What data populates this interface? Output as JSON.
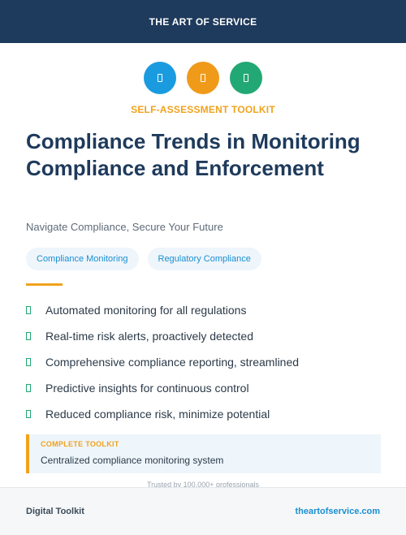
{
  "header": {
    "brand": "THE ART OF SERVICE"
  },
  "icons": [
    {
      "name": "document-icon",
      "color": "#1a9be0"
    },
    {
      "name": "document-icon",
      "color": "#f09a1a"
    },
    {
      "name": "document-icon",
      "color": "#22a874"
    }
  ],
  "kicker": "SELF-ASSESSMENT TOOLKIT",
  "title": "Compliance Trends in Monitoring Compliance and Enforcement",
  "subtitle": "Navigate Compliance, Secure Your Future",
  "tags": [
    "Compliance Monitoring",
    "Regulatory Compliance"
  ],
  "features": [
    "Automated monitoring for all regulations",
    "Real-time risk alerts, proactively detected",
    "Comprehensive compliance reporting, streamlined",
    "Predictive insights for continuous control",
    "Reduced compliance risk, minimize potential"
  ],
  "callout": {
    "kicker": "COMPLETE TOOLKIT",
    "text": "Centralized compliance monitoring system"
  },
  "trusted": "Trusted by 100,000+ professionals",
  "footer": {
    "left": "Digital Toolkit",
    "right": "theartofservice.com"
  },
  "colors": {
    "navy": "#1e3a5c",
    "accent_orange": "#f0a21c",
    "accent_blue": "#1a8fd0",
    "accent_green": "#22a874"
  }
}
